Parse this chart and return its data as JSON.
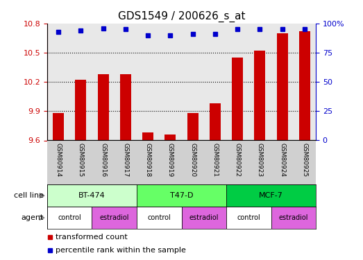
{
  "title": "GDS1549 / 200626_s_at",
  "samples": [
    "GSM80914",
    "GSM80915",
    "GSM80916",
    "GSM80917",
    "GSM80918",
    "GSM80919",
    "GSM80920",
    "GSM80921",
    "GSM80922",
    "GSM80923",
    "GSM80924",
    "GSM80925"
  ],
  "transformed_counts": [
    9.88,
    10.22,
    10.28,
    10.28,
    9.68,
    9.66,
    9.88,
    9.98,
    10.45,
    10.52,
    10.7,
    10.72
  ],
  "percentile_ranks": [
    93,
    94,
    96,
    95,
    90,
    90,
    91,
    91,
    95,
    95,
    95,
    95
  ],
  "ylim_left": [
    9.6,
    10.8
  ],
  "ylim_right": [
    0,
    100
  ],
  "yticks_left": [
    9.6,
    9.9,
    10.2,
    10.5,
    10.8
  ],
  "yticks_right": [
    0,
    25,
    50,
    75,
    100
  ],
  "bar_color": "#cc0000",
  "dot_color": "#0000cc",
  "cell_lines": [
    {
      "label": "BT-474",
      "start": 0,
      "end": 4,
      "color": "#ccffcc"
    },
    {
      "label": "T47-D",
      "start": 4,
      "end": 8,
      "color": "#66ff66"
    },
    {
      "label": "MCF-7",
      "start": 8,
      "end": 12,
      "color": "#00cc44"
    }
  ],
  "agents": [
    {
      "label": "control",
      "start": 0,
      "end": 2,
      "color": "#ffffff"
    },
    {
      "label": "estradiol",
      "start": 2,
      "end": 4,
      "color": "#dd66dd"
    },
    {
      "label": "control",
      "start": 4,
      "end": 6,
      "color": "#ffffff"
    },
    {
      "label": "estradiol",
      "start": 6,
      "end": 8,
      "color": "#dd66dd"
    },
    {
      "label": "control",
      "start": 8,
      "end": 10,
      "color": "#ffffff"
    },
    {
      "label": "estradiol",
      "start": 10,
      "end": 12,
      "color": "#dd66dd"
    }
  ],
  "legend_bar_label": "transformed count",
  "legend_dot_label": "percentile rank within the sample",
  "xlabel_color": "#000000",
  "left_axis_color": "#cc0000",
  "right_axis_color": "#0000cc",
  "grid_color": "#000000",
  "background_color": "#ffffff",
  "cell_line_label": "cell line",
  "agent_label": "agent",
  "tick_label_fontsize": 8,
  "axis_label_fontsize": 9,
  "title_fontsize": 11
}
